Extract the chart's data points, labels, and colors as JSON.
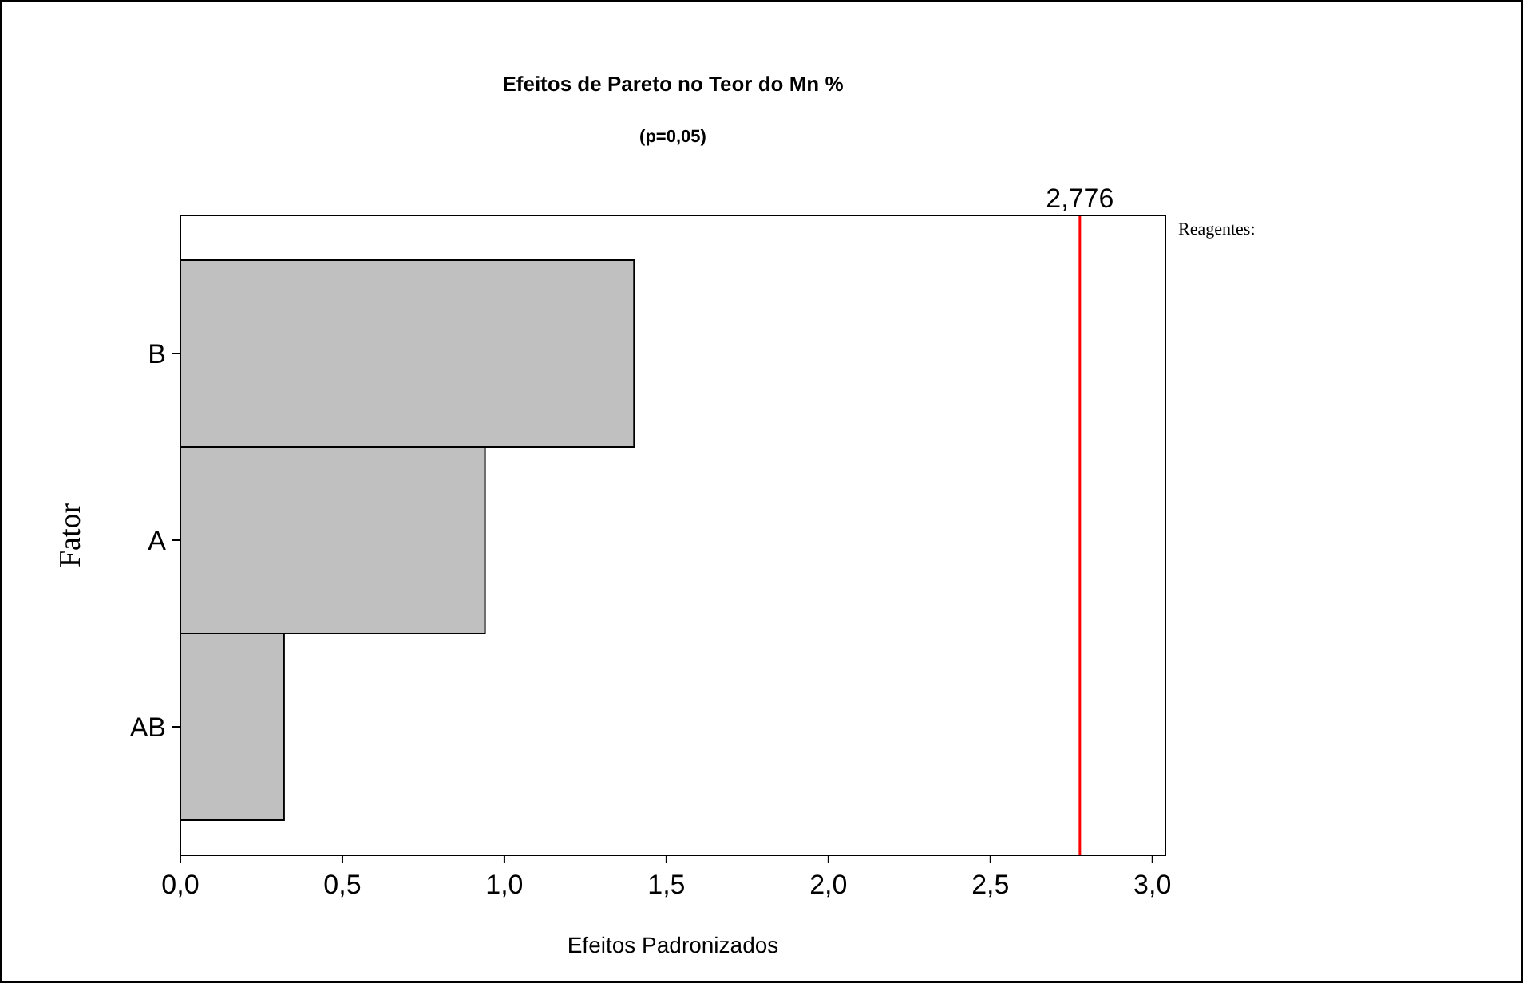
{
  "chart_data": {
    "type": "bar",
    "orientation": "horizontal",
    "title": "Efeitos de Pareto no Teor do Mn %",
    "subtitle": "(p=0,05)",
    "xlabel": "Efeitos Padronizados",
    "ylabel": "Fator",
    "categories": [
      "B",
      "A",
      "AB"
    ],
    "values": [
      1.4,
      0.94,
      0.32
    ],
    "color": "#c0c0c0",
    "xlim": [
      0,
      3.04
    ],
    "xticks": [
      {
        "value": 0,
        "label": "0,0"
      },
      {
        "value": 0.5,
        "label": "0,5"
      },
      {
        "value": 1,
        "label": "1,0"
      },
      {
        "value": 1.5,
        "label": "1,5"
      },
      {
        "value": 2,
        "label": "2,0"
      },
      {
        "value": 2.5,
        "label": "2,5"
      },
      {
        "value": 3,
        "label": "3,0"
      }
    ],
    "ref_lines": [
      {
        "axis": "x",
        "value": 2.776,
        "label": "2,776",
        "color": "#ff0000"
      }
    ],
    "annotations": [
      "Reagentes:"
    ],
    "grid": false
  }
}
